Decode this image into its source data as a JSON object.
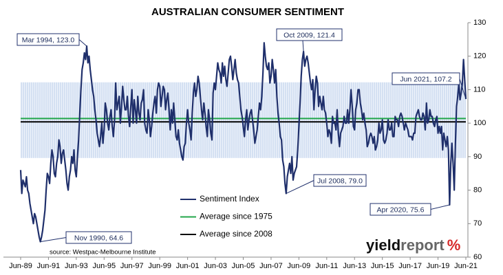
{
  "chart_data": {
    "type": "line",
    "title": "AUSTRALIAN CONSUMER SENTIMENT",
    "categories": [
      "Jun-89",
      null,
      null,
      null,
      null,
      null,
      null,
      null,
      null,
      null,
      null,
      null,
      null,
      null,
      null,
      null,
      null,
      null,
      null,
      null,
      null,
      null,
      null,
      null,
      "Jun-91",
      null,
      null,
      null,
      null,
      null,
      null,
      null,
      null,
      null,
      null,
      null,
      null,
      null,
      null,
      null,
      null,
      null,
      null,
      null,
      null,
      null,
      null,
      null,
      "Jun-93",
      null,
      null,
      null,
      null,
      null,
      null,
      null,
      null,
      null,
      null,
      null,
      null,
      null,
      null,
      null,
      null,
      null,
      null,
      null,
      null,
      null,
      null,
      null,
      "Jun-95",
      null,
      null,
      null,
      null,
      null,
      null,
      null,
      null,
      null,
      null,
      null,
      null,
      null,
      null,
      null,
      null,
      null,
      null,
      null,
      null,
      null,
      null,
      null,
      "Jun-97",
      null,
      null,
      null,
      null,
      null,
      null,
      null,
      null,
      null,
      null,
      null,
      null,
      null,
      null,
      null,
      null,
      null,
      null,
      null,
      null,
      null,
      null,
      null,
      "Jun-99",
      null,
      null,
      null,
      null,
      null,
      null,
      null,
      null,
      null,
      null,
      null,
      null,
      null,
      null,
      null,
      null,
      null,
      null,
      null,
      null,
      null,
      null,
      null,
      "Jun-01",
      null,
      null,
      null,
      null,
      null,
      null,
      null,
      null,
      null,
      null,
      null,
      null,
      null,
      null,
      null,
      null,
      null,
      null,
      null,
      null,
      null,
      null,
      null,
      "Jun-03",
      null,
      null,
      null,
      null,
      null,
      null,
      null,
      null,
      null,
      null,
      null,
      null,
      null,
      null,
      null,
      null,
      null,
      null,
      null,
      null,
      null,
      null,
      null,
      "Jun-05",
      null,
      null,
      null,
      null,
      null,
      null,
      null,
      null,
      null,
      null,
      null,
      null,
      null,
      null,
      null,
      null,
      null,
      null,
      null,
      null,
      null,
      null,
      null,
      "Jun-07",
      null,
      null,
      null,
      null,
      null,
      null,
      null,
      null,
      null,
      null,
      null,
      null,
      null,
      null,
      null,
      null,
      null,
      null,
      null,
      null,
      null,
      null,
      null,
      "Jun-09",
      null,
      null,
      null,
      null,
      null,
      null,
      null,
      null,
      null,
      null,
      null,
      null,
      null,
      null,
      null,
      null,
      null,
      null,
      null,
      null,
      null,
      null,
      null,
      "Jun-11",
      null,
      null,
      null,
      null,
      null,
      null,
      null,
      null,
      null,
      null,
      null,
      null,
      null,
      null,
      null,
      null,
      null,
      null,
      null,
      null,
      null,
      null,
      null,
      "Jun-13",
      null,
      null,
      null,
      null,
      null,
      null,
      null,
      null,
      null,
      null,
      null,
      null,
      null,
      null,
      null,
      null,
      null,
      null,
      null,
      null,
      null,
      null,
      null,
      "Jun-15",
      null,
      null,
      null,
      null,
      null,
      null,
      null,
      null,
      null,
      null,
      null,
      null,
      null,
      null,
      null,
      null,
      null,
      null,
      null,
      null,
      null,
      null,
      null,
      "Jun-17",
      null,
      null,
      null,
      null,
      null,
      null,
      null,
      null,
      null,
      null,
      null,
      null,
      null,
      null,
      null,
      null,
      null,
      null,
      null,
      null,
      null,
      null,
      null,
      "Jun-19",
      null,
      null,
      null,
      null,
      null,
      null,
      null,
      null,
      null,
      null,
      null,
      null,
      null,
      null,
      null,
      null,
      null,
      null,
      null,
      null,
      null,
      null,
      null,
      "Jun-21"
    ],
    "series": [
      {
        "name": "Sentiment Index",
        "color": "#1f2f6b",
        "values": [
          86,
          79,
          83,
          82,
          81,
          84,
          80,
          79,
          76,
          74,
          72,
          70,
          73,
          72,
          70,
          68,
          66,
          64.6,
          66,
          68,
          71,
          74,
          80,
          85,
          84,
          82,
          88,
          92,
          90,
          85,
          84,
          88,
          90,
          95,
          93,
          88,
          91,
          92,
          89,
          86,
          82,
          80,
          84,
          86,
          90,
          88,
          92,
          86,
          84,
          90,
          95,
          103,
          110,
          116,
          118,
          121,
          119,
          123.0,
          118,
          120,
          116,
          113,
          110,
          108,
          104,
          101,
          97,
          95,
          93,
          96,
          100,
          94,
          98,
          106,
          104,
          100,
          98,
          102,
          104,
          99,
          96,
          101,
          112,
          104,
          106,
          108,
          100,
          105,
          111,
          107,
          104,
          104,
          108,
          102,
          99,
          105,
          110,
          100,
          107,
          104,
          100,
          108,
          103,
          101,
          106,
          107,
          110,
          100,
          98,
          97,
          104,
          101,
          96,
          99,
          103,
          106,
          108,
          103,
          110,
          112,
          111,
          105,
          108,
          111,
          110,
          104,
          107,
          109,
          104,
          98,
          104,
          100,
          106,
          101,
          96,
          95,
          98,
          94,
          92,
          90,
          89,
          93,
          94,
          100,
          104,
          100,
          98,
          95,
          103,
          109,
          112,
          108,
          110,
          114,
          112,
          108,
          104,
          101,
          106,
          103,
          99,
          96,
          104,
          101,
          97,
          95,
          109,
          112,
          110,
          114,
          118,
          116,
          115,
          112,
          118,
          114,
          117,
          113,
          111,
          115,
          119,
          120,
          117,
          113,
          116,
          119,
          115,
          113,
          112,
          108,
          104,
          102,
          99,
          96,
          101,
          104,
          98,
          101,
          103,
          104,
          101,
          98,
          94,
          96,
          98,
          102,
          106,
          104,
          108,
          115,
          124,
          120,
          117,
          116,
          118,
          112,
          114,
          119,
          116,
          112,
          116,
          108,
          103,
          100,
          96,
          95,
          89,
          87,
          82,
          79.0,
          84,
          86,
          88,
          85,
          90,
          83,
          85,
          86,
          87,
          92,
          99,
          106,
          114,
          119,
          121.4,
          117,
          119,
          120,
          118,
          115,
          112,
          110,
          113,
          104,
          110,
          114,
          112,
          105,
          108,
          106,
          104,
          108,
          104,
          103,
          100,
          96,
          98,
          97,
          94,
          102,
          100,
          100,
          98,
          104,
          97,
          93,
          97,
          98,
          99,
          102,
          100,
          100,
          104,
          100,
          104,
          110,
          105,
          99,
          98,
          104,
          106,
          110,
          110,
          106,
          104,
          101,
          103,
          100,
          98,
          93,
          94,
          96,
          97,
          96,
          94,
          96,
          92,
          93,
          95,
          100,
          97,
          98,
          101,
          95,
          94,
          95,
          97,
          101,
          98,
          98,
          100,
          96,
          96,
          102,
          101,
          101,
          99,
          102,
          103,
          102,
          100,
          98,
          100,
          99,
          98,
          96,
          96,
          96,
          95,
          97,
          97,
          102,
          103,
          104,
          102,
          101,
          101,
          103,
          102,
          98,
          106,
          100,
          101,
          104,
          102,
          102,
          100,
          99,
          101,
          102,
          97,
          99,
          97,
          99,
          92,
          97,
          95,
          93,
          96,
          92,
          75.6,
          88,
          94,
          88,
          80,
          94,
          105,
          108,
          112,
          107,
          109,
          112,
          119,
          113,
          107.2
        ]
      }
    ],
    "reference_lines": [
      {
        "name": "Average since 1975",
        "color": "#22a64a",
        "value": 101.4
      },
      {
        "name": "Average since 2008",
        "color": "#000000",
        "value": 100.4
      }
    ],
    "shaded_range": [
      89.6,
      112.2
    ],
    "shaded_color": "#b9cdea",
    "annotations": [
      "Mar 1994, 123.0",
      "Nov 1990, 64.6",
      "Oct 2009, 121.4",
      "Jul 2008, 79.0",
      "Apr 2020, 75.6",
      "Jun 2021, 107.2"
    ],
    "source": "source: Westpac-Melbourne Institute",
    "logo": [
      "yield",
      "report",
      "%"
    ],
    "ylim": [
      60,
      130
    ],
    "yticks": [
      60,
      70,
      80,
      90,
      100,
      110,
      120,
      130
    ],
    "grid": false
  }
}
